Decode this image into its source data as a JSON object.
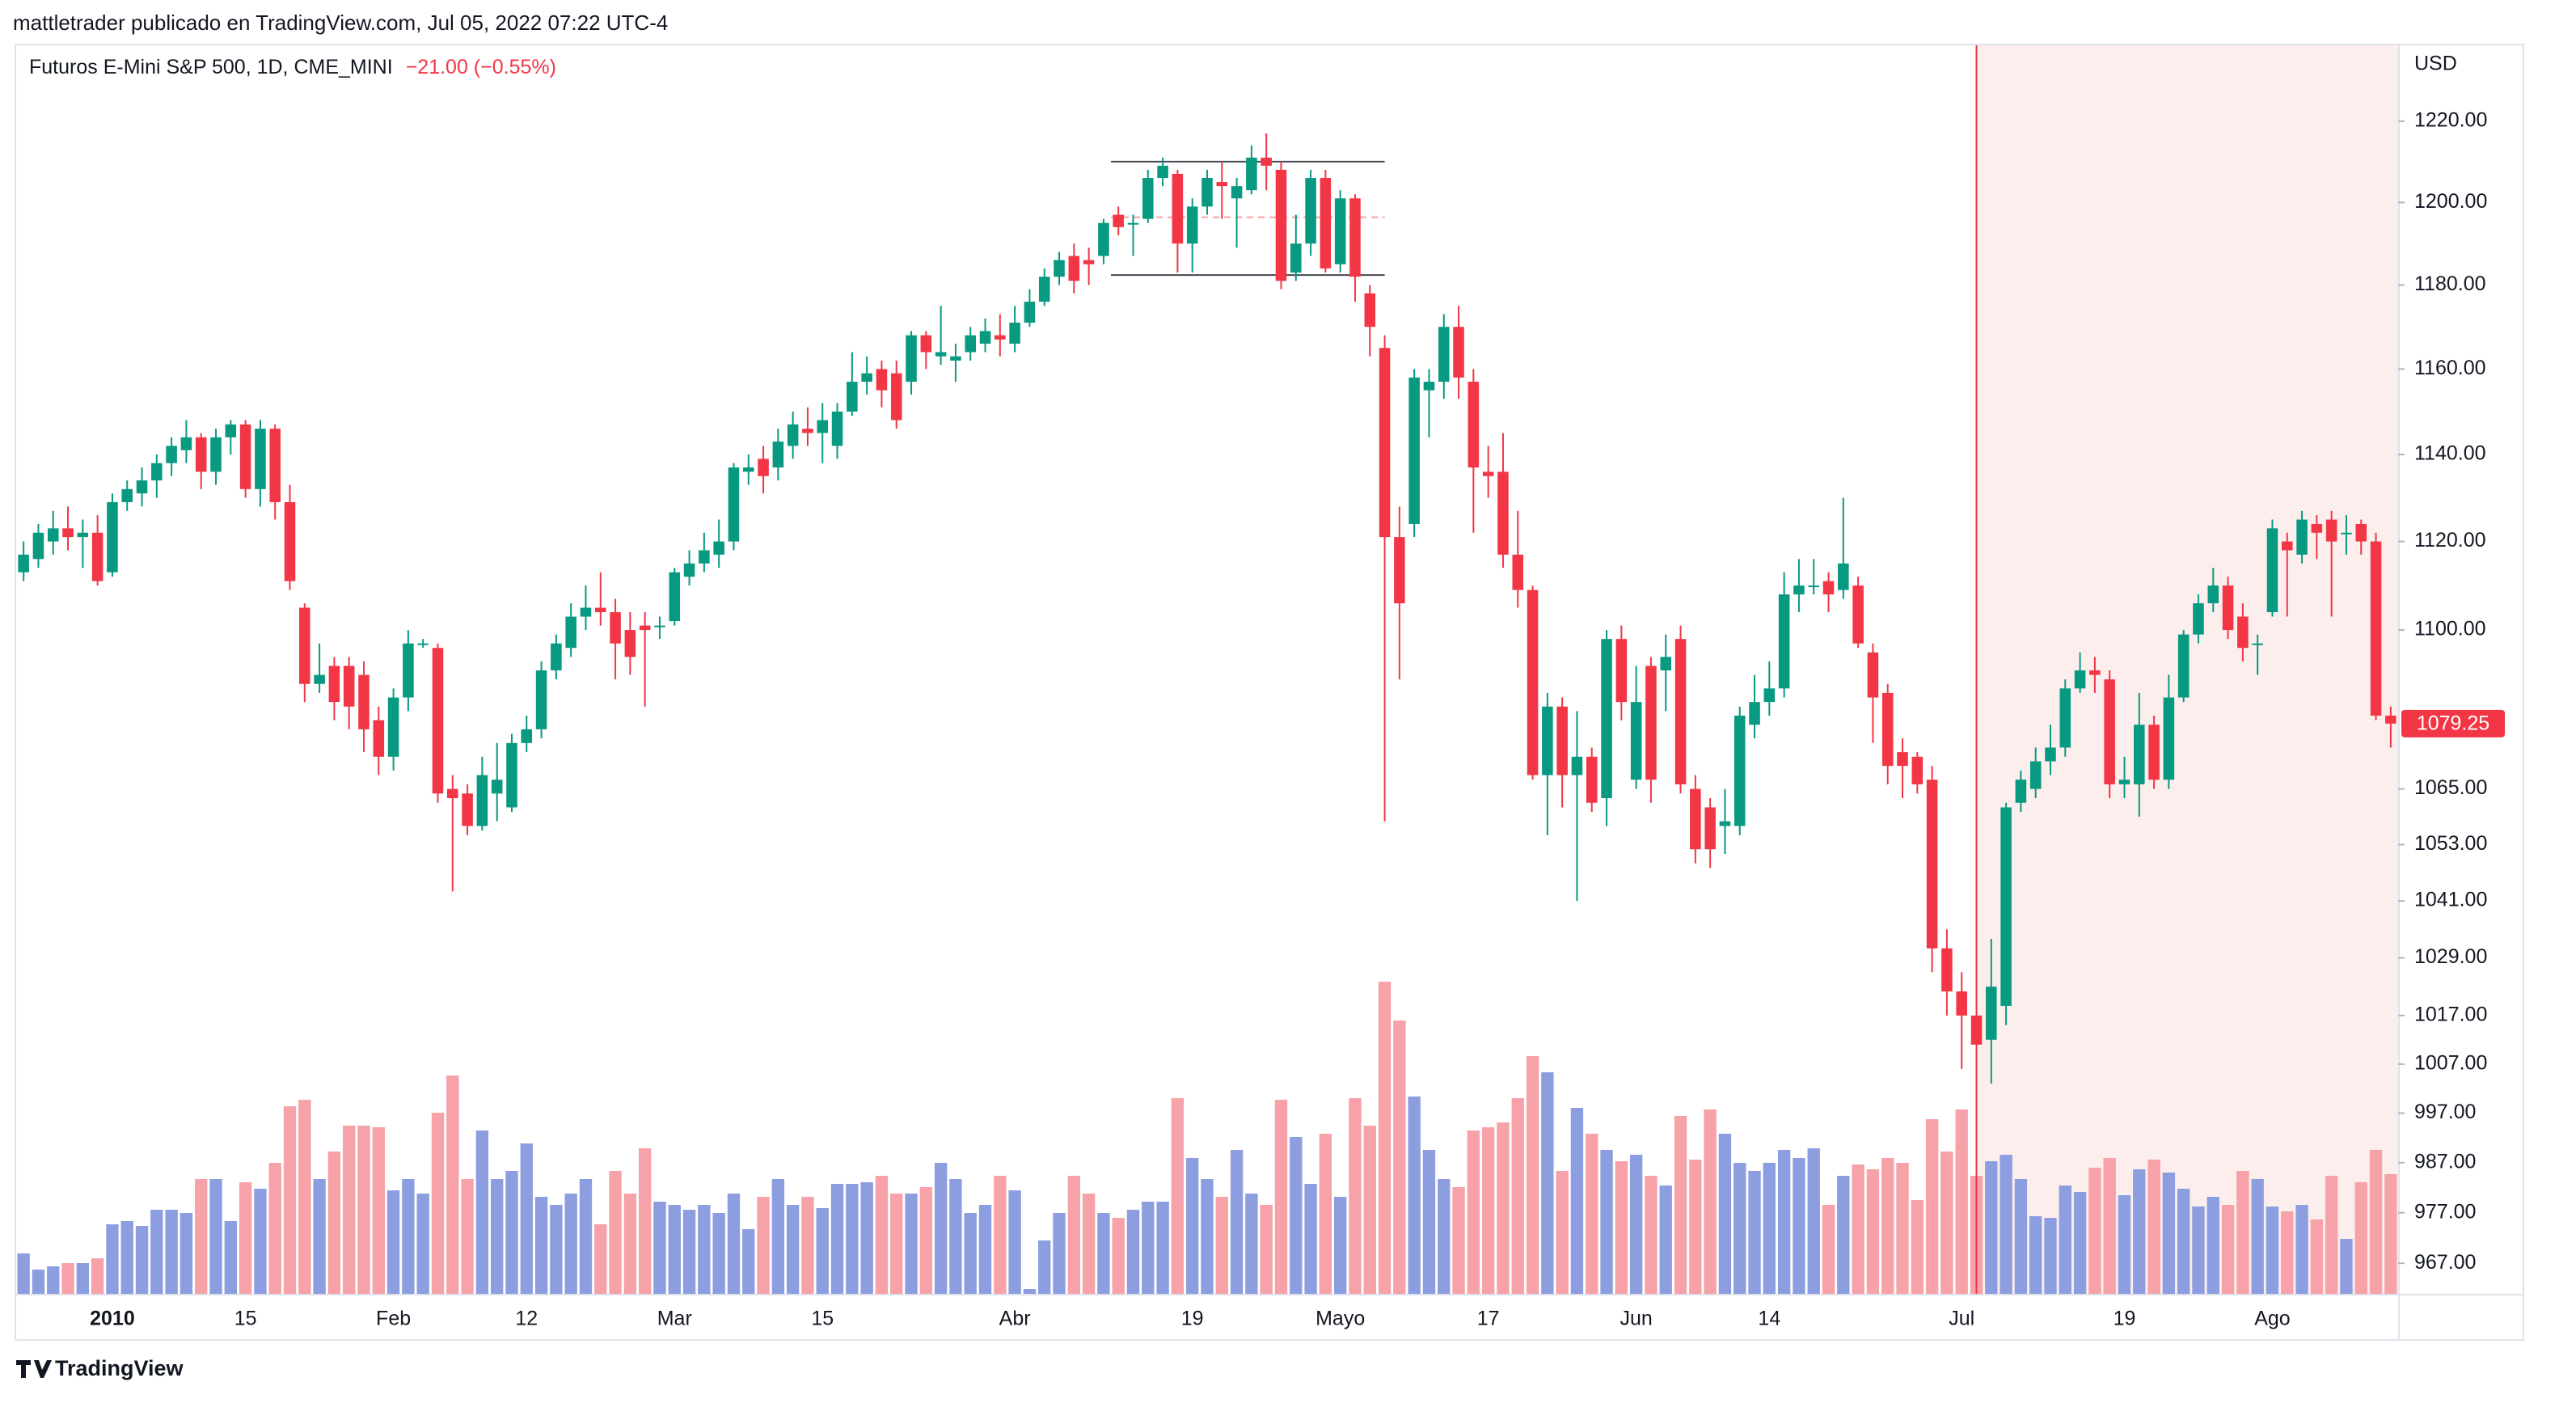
{
  "header": "mattletrader publicado en TradingView.com, Jul 05, 2022 07:22 UTC-4",
  "footer": "TradingView",
  "chart_data": {
    "type": "candlestick",
    "title": "Futuros E-Mini S&P 500, 1D, CME_MINI",
    "change": "−21.00 (−0.55%)",
    "currency": "USD",
    "log_scale": true,
    "up_color": "#089981",
    "down_color": "#f23645",
    "volume_up_color": "#8d9ee0",
    "volume_down_color": "#f7a1a8",
    "highlight_color": "#fdeeee",
    "ylim": [
      961,
      1239
    ],
    "yticks": [
      {
        "value": 1220,
        "label": "1220.00"
      },
      {
        "value": 1200,
        "label": "1200.00"
      },
      {
        "value": 1180,
        "label": "1180.00"
      },
      {
        "value": 1160,
        "label": "1160.00"
      },
      {
        "value": 1140,
        "label": "1140.00"
      },
      {
        "value": 1120,
        "label": "1120.00"
      },
      {
        "value": 1100,
        "label": "1100.00"
      },
      {
        "value": 1065,
        "label": "1065.00"
      },
      {
        "value": 1053,
        "label": "1053.00"
      },
      {
        "value": 1041,
        "label": "1041.00"
      },
      {
        "value": 1029,
        "label": "1029.00"
      },
      {
        "value": 1017,
        "label": "1017.00"
      },
      {
        "value": 1007,
        "label": "1007.00"
      },
      {
        "value": 997,
        "label": "997.00"
      },
      {
        "value": 987,
        "label": "987.00"
      },
      {
        "value": 977,
        "label": "977.00"
      },
      {
        "value": 967,
        "label": "967.00"
      }
    ],
    "levels": [
      1210,
      1196.4,
      1182.4
    ],
    "levels_from": 74,
    "levels_to": 92,
    "highlight_from": 132,
    "categories": [
      null,
      null,
      null,
      null,
      null,
      null,
      "2010",
      null,
      null,
      null,
      null,
      null,
      null,
      null,
      null,
      "15",
      null,
      null,
      null,
      null,
      null,
      null,
      null,
      null,
      null,
      "Feb",
      null,
      null,
      null,
      null,
      null,
      null,
      null,
      null,
      "12",
      null,
      null,
      null,
      null,
      null,
      null,
      null,
      null,
      null,
      "Mar",
      null,
      null,
      null,
      null,
      null,
      null,
      null,
      null,
      null,
      "15",
      null,
      null,
      null,
      null,
      null,
      null,
      null,
      null,
      null,
      null,
      null,
      null,
      "Abr",
      null,
      null,
      null,
      null,
      null,
      null,
      null,
      null,
      null,
      null,
      null,
      "19",
      null,
      null,
      null,
      null,
      null,
      null,
      null,
      null,
      null,
      "Mayo",
      null,
      null,
      null,
      null,
      null,
      null,
      null,
      null,
      null,
      "17",
      null,
      null,
      null,
      null,
      null,
      null,
      null,
      null,
      null,
      "Jun",
      null,
      null,
      null,
      null,
      null,
      null,
      null,
      null,
      "14",
      null,
      null,
      null,
      null,
      null,
      null,
      null,
      null,
      null,
      null,
      null,
      null,
      "Jul",
      null,
      null,
      null,
      null,
      null,
      null,
      null,
      null,
      null,
      null,
      "19",
      null,
      null,
      null,
      null,
      null,
      null,
      null,
      null,
      null,
      "Ago",
      null,
      null,
      null,
      null,
      null,
      null,
      null,
      null
    ],
    "open": [
      1113,
      1116,
      1120,
      1123,
      1121,
      1122,
      1113,
      1129,
      1131,
      1134,
      1138,
      1141,
      1144,
      1136,
      1144,
      1147,
      1132,
      1146,
      1129,
      1105,
      1088,
      1092,
      1092,
      1090,
      1080,
      1072,
      1085,
      1097,
      1096,
      1065,
      1064,
      1057,
      1064,
      1061,
      1075,
      1078,
      1091,
      1096,
      1103,
      1105,
      1104,
      1100,
      1101,
      1101,
      1102,
      1112,
      1115,
      1117,
      1120,
      1136,
      1139,
      1137,
      1142,
      1146,
      1145,
      1142,
      1150,
      1157,
      1160,
      1159,
      1157,
      1168,
      1163,
      1162,
      1164,
      1166,
      1168,
      1166,
      1171,
      1176,
      1182,
      1187,
      1186,
      1187,
      1197,
      1195,
      1196,
      1206,
      1207,
      1190,
      1199,
      1205,
      1201,
      1203,
      1211,
      1208,
      1183,
      1190,
      1206,
      1185,
      1201,
      1178,
      1165,
      1121,
      1124,
      1155,
      1157,
      1170,
      1157,
      1136,
      1136,
      1117,
      1109,
      1068,
      1083,
      1068,
      1072,
      1063,
      1098,
      1067,
      1092,
      1091,
      1098,
      1065,
      1061,
      1057,
      1057,
      1079,
      1084,
      1087,
      1108,
      1110,
      1111,
      1109,
      1110,
      1095,
      1086,
      1073,
      1072,
      1067,
      1031,
      1022,
      1017,
      1012,
      1019,
      1062,
      1065,
      1071,
      1074,
      1087,
      1091,
      1089,
      1066,
      1066,
      1079,
      1067,
      1085,
      1099,
      1106,
      1110,
      1103,
      1097,
      1104,
      1120,
      1117,
      1124,
      1125,
      1122,
      1124,
      1120,
      1081
    ],
    "high": [
      1120,
      1124,
      1127,
      1128,
      1125,
      1126,
      1131,
      1134,
      1137,
      1140,
      1144,
      1148,
      1145,
      1146,
      1148,
      1148,
      1148,
      1147,
      1133,
      1106,
      1097,
      1094,
      1094,
      1093,
      1083,
      1087,
      1100,
      1098,
      1097,
      1068,
      1066,
      1072,
      1075,
      1077,
      1081,
      1093,
      1099,
      1106,
      1110,
      1113,
      1107,
      1104,
      1104,
      1103,
      1114,
      1118,
      1122,
      1125,
      1138,
      1140,
      1142,
      1146,
      1150,
      1151,
      1152,
      1152,
      1164,
      1163,
      1162,
      1162,
      1169,
      1169,
      1175,
      1166,
      1170,
      1172,
      1173,
      1175,
      1179,
      1184,
      1188,
      1190,
      1189,
      1196,
      1199,
      1197,
      1208,
      1211,
      1208,
      1201,
      1208,
      1210,
      1206,
      1214,
      1217,
      1210,
      1197,
      1208,
      1208,
      1203,
      1202,
      1180,
      1168,
      1128,
      1160,
      1160,
      1173,
      1175,
      1160,
      1142,
      1145,
      1127,
      1110,
      1086,
      1085,
      1082,
      1074,
      1100,
      1101,
      1092,
      1094,
      1099,
      1101,
      1068,
      1063,
      1065,
      1083,
      1090,
      1093,
      1113,
      1116,
      1116,
      1113,
      1130,
      1112,
      1097,
      1088,
      1076,
      1073,
      1070,
      1035,
      1026,
      1022,
      1033,
      1062,
      1069,
      1074,
      1079,
      1089,
      1095,
      1094,
      1091,
      1072,
      1086,
      1081,
      1090,
      1100,
      1108,
      1114,
      1112,
      1106,
      1099,
      1125,
      1122,
      1127,
      1126,
      1127,
      1126,
      1125,
      1122,
      1083
    ],
    "low": [
      1111,
      1114,
      1117,
      1118,
      1114,
      1110,
      1112,
      1127,
      1128,
      1130,
      1135,
      1138,
      1132,
      1133,
      1140,
      1130,
      1128,
      1125,
      1109,
      1084,
      1086,
      1080,
      1078,
      1073,
      1068,
      1069,
      1082,
      1096,
      1062,
      1043,
      1055,
      1056,
      1058,
      1060,
      1073,
      1076,
      1089,
      1094,
      1100,
      1101,
      1089,
      1090,
      1083,
      1098,
      1101,
      1110,
      1113,
      1114,
      1118,
      1133,
      1131,
      1134,
      1139,
      1142,
      1138,
      1139,
      1149,
      1154,
      1151,
      1146,
      1154,
      1160,
      1161,
      1157,
      1162,
      1164,
      1163,
      1164,
      1170,
      1175,
      1180,
      1178,
      1180,
      1185,
      1192,
      1187,
      1195,
      1204,
      1183,
      1183,
      1197,
      1196,
      1189,
      1202,
      1203,
      1179,
      1181,
      1187,
      1183,
      1183,
      1176,
      1163,
      1058,
      1089,
      1121,
      1144,
      1153,
      1153,
      1122,
      1130,
      1114,
      1105,
      1067,
      1055,
      1061,
      1041,
      1060,
      1057,
      1080,
      1065,
      1062,
      1082,
      1064,
      1049,
      1048,
      1051,
      1055,
      1076,
      1081,
      1085,
      1104,
      1108,
      1104,
      1107,
      1096,
      1075,
      1066,
      1063,
      1064,
      1026,
      1017,
      1006,
      1005,
      1003,
      1015,
      1060,
      1063,
      1068,
      1072,
      1086,
      1086,
      1063,
      1063,
      1059,
      1065,
      1065,
      1084,
      1097,
      1104,
      1098,
      1093,
      1090,
      1103,
      1103,
      1115,
      1116,
      1103,
      1117,
      1117,
      1080,
      1074
    ],
    "close": [
      1117,
      1122,
      1123,
      1121,
      1122,
      1111,
      1129,
      1132,
      1134,
      1138,
      1142,
      1144,
      1136,
      1144,
      1147,
      1132,
      1146,
      1129,
      1111,
      1088,
      1090,
      1084,
      1083,
      1078,
      1072,
      1085,
      1097,
      1097,
      1064,
      1063,
      1057,
      1068,
      1067,
      1075,
      1078,
      1091,
      1097,
      1103,
      1105,
      1104,
      1097,
      1094,
      1100,
      1101,
      1113,
      1115,
      1118,
      1120,
      1137,
      1137,
      1135,
      1143,
      1147,
      1145,
      1148,
      1150,
      1157,
      1159,
      1155,
      1148,
      1168,
      1164,
      1164,
      1163,
      1168,
      1169,
      1167,
      1171,
      1176,
      1182,
      1186,
      1181,
      1185,
      1195,
      1194,
      1195,
      1206,
      1209,
      1190,
      1199,
      1206,
      1204,
      1204,
      1211,
      1209,
      1181,
      1190,
      1206,
      1184,
      1201,
      1182,
      1170,
      1121,
      1106,
      1158,
      1157,
      1170,
      1158,
      1137,
      1135,
      1117,
      1109,
      1068,
      1083,
      1068,
      1072,
      1062,
      1098,
      1084,
      1084,
      1067,
      1094,
      1066,
      1052,
      1052,
      1058,
      1081,
      1084,
      1087,
      1108,
      1110,
      1110,
      1108,
      1115,
      1097,
      1085,
      1070,
      1070,
      1066,
      1031,
      1022,
      1017,
      1011,
      1023,
      1061,
      1067,
      1071,
      1074,
      1087,
      1091,
      1090,
      1066,
      1067,
      1079,
      1067,
      1085,
      1099,
      1106,
      1110,
      1100,
      1096,
      1097,
      1123,
      1118,
      1125,
      1122,
      1120,
      1122,
      1120,
      1081,
      1079.25
    ],
    "volume": [
      25,
      15,
      17,
      19,
      19,
      22,
      43,
      45,
      42,
      52,
      52,
      50,
      71,
      71,
      45,
      69,
      65,
      81,
      116,
      120,
      71,
      88,
      104,
      104,
      103,
      64,
      71,
      62,
      112,
      135,
      71,
      101,
      71,
      76,
      93,
      60,
      55,
      62,
      71,
      43,
      76,
      62,
      90,
      57,
      55,
      52,
      55,
      50,
      62,
      40,
      60,
      71,
      55,
      60,
      53,
      68,
      68,
      69,
      73,
      62,
      62,
      66,
      81,
      71,
      50,
      55,
      73,
      64,
      3,
      33,
      50,
      73,
      62,
      50,
      47,
      52,
      57,
      57,
      121,
      84,
      71,
      60,
      89,
      62,
      55,
      120,
      97,
      68,
      99,
      60,
      121,
      104,
      193,
      169,
      122,
      89,
      71,
      66,
      101,
      103,
      106,
      121,
      147,
      137,
      76,
      115,
      99,
      89,
      82,
      86,
      73,
      67,
      110,
      83,
      114,
      99,
      81,
      76,
      81,
      89,
      84,
      90,
      55,
      73,
      80,
      77,
      84,
      81,
      58,
      108,
      88,
      114,
      73,
      82,
      86,
      71,
      48,
      47,
      67,
      63,
      78,
      84,
      61,
      77,
      83,
      75,
      65,
      54,
      60,
      55,
      76,
      71,
      54,
      51,
      55,
      46,
      73,
      34,
      69,
      89,
      74
    ]
  }
}
